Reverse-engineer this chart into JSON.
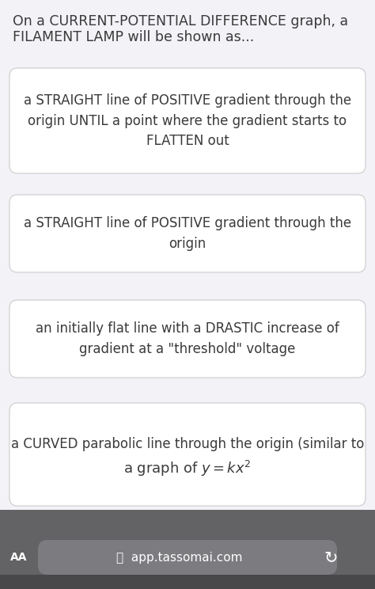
{
  "title_line1": "On a CURRENT-POTENTIAL DIFFERENCE graph, a",
  "title_line2": "FILAMENT LAMP will be shown as...",
  "title_fontsize": 12.5,
  "title_color": "#3a3a3a",
  "bg_color": "#f2f2f7",
  "card_bg": "#ffffff",
  "card_edge": "#cccccc",
  "text_color": "#3a3a3a",
  "cards": [
    "a STRAIGHT line of POSITIVE gradient through the\norigin UNTIL a point where the gradient starts to\nFLATTEN out",
    "a STRAIGHT line of POSITIVE gradient through the\norigin",
    "an initially flat line with a DRASTIC increase of\ngradient at a \"threshold\" voltage",
    "a CURVED parabolic line through the origin (similar to"
  ],
  "card4_line2": "a graph of $y = kx^2$",
  "card_fontsize": 12.0,
  "bottom_bar_color": "#636366",
  "bottom_url_bg": "#7c7c80",
  "bottom_text": "app.tassomai.com",
  "bottom_text_color": "#ffffff",
  "aa_text_color": "#ffffff"
}
